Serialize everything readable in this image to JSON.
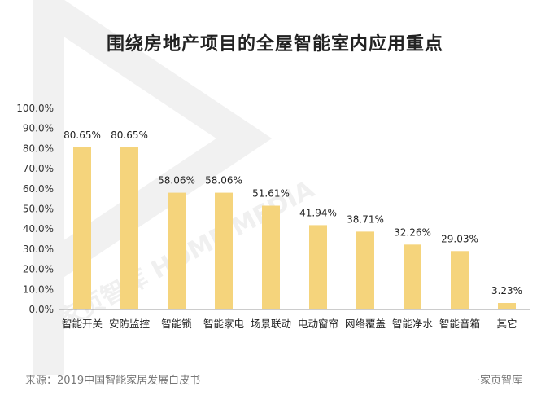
{
  "title": "围绕房地产项目的全屋智能室内应用重点",
  "source_text": "来源：2019中国智能家居发展白皮书",
  "brand_text": "·家页智库",
  "watermark": "家页智库 HOME MEDIA",
  "colors": {
    "bar": "#F5D47C",
    "axis": "#999999",
    "text": "#222222",
    "watermark": "#f0f0f0"
  },
  "chart_data": {
    "type": "bar",
    "title": "围绕房地产项目的全屋智能室内应用重点",
    "xlabel": "",
    "ylabel": "",
    "ylim": [
      0,
      100
    ],
    "yticks": [
      "0.0%",
      "10.0%",
      "20.0%",
      "30.0%",
      "40.0%",
      "50.0%",
      "60.0%",
      "70.0%",
      "80.0%",
      "90.0%",
      "100.0%"
    ],
    "categories": [
      "智能开关",
      "安防监控",
      "智能锁",
      "智能家电",
      "场景联动",
      "电动窗帘",
      "网络覆盖",
      "智能净水",
      "智能音箱",
      "其它"
    ],
    "values": [
      80.65,
      80.65,
      58.06,
      58.06,
      51.61,
      41.94,
      38.71,
      32.26,
      29.03,
      3.23
    ],
    "data_labels": [
      "80.65%",
      "80.65%",
      "58.06%",
      "58.06%",
      "51.61%",
      "41.94%",
      "38.71%",
      "32.26%",
      "29.03%",
      "3.23%"
    ],
    "grid": false,
    "legend": "none"
  }
}
